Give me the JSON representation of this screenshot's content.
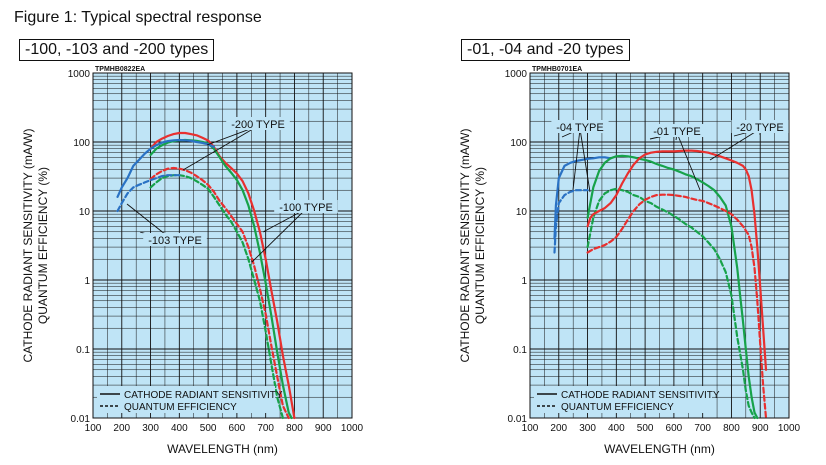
{
  "figure_title": "Figure 1: Typical spectral response",
  "chart_data": [
    {
      "type": "line",
      "title": "-100, -103 and -200 types",
      "code": "TPMHB0822EA",
      "xlabel": "WAVELENGTH (nm)",
      "ylabel_1": "CATHODE RADIANT SENSITIVITY (mA/W)",
      "ylabel_2": "QUANTUM EFFICIENCY (%)",
      "xlim": [
        100,
        1000
      ],
      "ylim": [
        0.01,
        1000
      ],
      "yscale": "log",
      "grid": true,
      "x_ticks": [
        "100",
        "200",
        "300",
        "400",
        "500",
        "600",
        "700",
        "800",
        "900",
        "1000"
      ],
      "y_ticks": [
        "0.01",
        "0.1",
        "1",
        "10",
        "100",
        "1000"
      ],
      "legend": {
        "placement": "bottom-left",
        "solid": "CATHODE RADIANT SENSITIVITY",
        "dashed": "QUANTUM EFFICIENCY"
      },
      "annotations": [
        "-200 TYPE",
        "-100 TYPE",
        "-103 TYPE"
      ],
      "series": [
        {
          "color": "#e8302f",
          "dash": false,
          "x": [
            300,
            320,
            340,
            360,
            380,
            400,
            420,
            440,
            460,
            480,
            500,
            520,
            540,
            560,
            580,
            600,
            620,
            640,
            660,
            680,
            700,
            720,
            740,
            760,
            780,
            800
          ],
          "y": [
            80,
            100,
            112,
            122,
            130,
            135,
            135,
            130,
            125,
            115,
            105,
            85,
            62,
            50,
            42,
            35,
            27,
            18,
            10,
            5,
            2,
            0.7,
            0.25,
            0.08,
            0.03,
            0.01
          ]
        },
        {
          "color": "#e8302f",
          "dash": true,
          "x": [
            300,
            320,
            340,
            360,
            380,
            400,
            420,
            440,
            460,
            480,
            500,
            520,
            540,
            560,
            580,
            600,
            620,
            640,
            660,
            680,
            700,
            720,
            740,
            760,
            780
          ],
          "y": [
            29,
            34,
            38,
            41,
            42,
            41,
            39,
            36,
            32,
            28,
            24,
            19,
            14,
            11,
            8.5,
            6.5,
            5,
            3,
            1.6,
            0.75,
            0.32,
            0.11,
            0.04,
            0.015,
            0.01
          ]
        },
        {
          "color": "#17a24a",
          "dash": false,
          "x": [
            300,
            320,
            340,
            360,
            380,
            400,
            420,
            440,
            460,
            480,
            500,
            520,
            540,
            560,
            580,
            600,
            620,
            640,
            660,
            680,
            700,
            720,
            740,
            760,
            780,
            790
          ],
          "y": [
            65,
            80,
            90,
            98,
            103,
            106,
            107,
            106,
            104,
            100,
            95,
            80,
            60,
            45,
            36,
            28,
            20,
            12,
            6,
            2.5,
            0.9,
            0.3,
            0.09,
            0.03,
            0.012,
            0.01
          ]
        },
        {
          "color": "#17a24a",
          "dash": true,
          "x": [
            300,
            320,
            340,
            360,
            380,
            400,
            420,
            440,
            460,
            480,
            500,
            520,
            540,
            560,
            580,
            600,
            620,
            640,
            660,
            680,
            700,
            720,
            740,
            760
          ],
          "y": [
            22,
            26,
            30,
            32,
            33,
            33,
            32,
            30,
            27,
            24,
            21,
            16,
            12,
            9,
            7,
            5,
            3.5,
            2,
            1,
            0.5,
            0.18,
            0.06,
            0.02,
            0.01
          ]
        },
        {
          "color": "#2a72c4",
          "dash": false,
          "x": [
            185,
            200,
            220,
            240,
            260,
            280,
            300,
            320,
            340,
            360,
            380,
            400,
            420,
            440,
            460,
            480,
            500,
            520
          ],
          "y": [
            16,
            22,
            30,
            45,
            55,
            68,
            80,
            90,
            98,
            103,
            106,
            107,
            106,
            104,
            100,
            97,
            93,
            85
          ]
        },
        {
          "color": "#2a72c4",
          "dash": true,
          "x": [
            185,
            200,
            220,
            240,
            260,
            280,
            300,
            320,
            340,
            360,
            380,
            400
          ],
          "y": [
            10,
            13,
            18,
            22,
            24,
            26,
            28,
            30,
            32,
            33,
            33,
            33
          ]
        }
      ]
    },
    {
      "type": "line",
      "title": "-01, -04 and -20 types",
      "code": "TPMHB0701EA",
      "xlabel": "WAVELENGTH (nm)",
      "ylabel_1": "CATHODE RADIANT SENSITIVITY (mA/W)",
      "ylabel_2": "QUANTUM EFFICIENCY (%)",
      "xlim": [
        100,
        1000
      ],
      "ylim": [
        0.01,
        1000
      ],
      "yscale": "log",
      "grid": true,
      "x_ticks": [
        "100",
        "200",
        "300",
        "400",
        "500",
        "600",
        "700",
        "800",
        "900",
        "1000"
      ],
      "y_ticks": [
        "0.01",
        "0.1",
        "1",
        "10",
        "100",
        "1000"
      ],
      "legend": {
        "placement": "bottom-left",
        "solid": "CATHODE RADIANT SENSITIVITY",
        "dashed": "QUANTUM EFFICIENCY"
      },
      "annotations": [
        "-04 TYPE",
        "-01 TYPE",
        "-20 TYPE"
      ],
      "series": [
        {
          "color": "#2a72c4",
          "dash": false,
          "x": [
            185,
            190,
            200,
            220,
            240,
            260,
            280,
            300,
            320,
            340,
            360,
            380
          ],
          "y": [
            4,
            12,
            30,
            45,
            50,
            53,
            55,
            57,
            58,
            60,
            60,
            58
          ]
        },
        {
          "color": "#2a72c4",
          "dash": true,
          "x": [
            185,
            190,
            200,
            220,
            240,
            260,
            280,
            300
          ],
          "y": [
            2.5,
            6,
            13,
            17,
            19,
            20,
            20,
            20
          ]
        },
        {
          "color": "#17a24a",
          "dash": false,
          "x": [
            300,
            320,
            340,
            360,
            380,
            400,
            420,
            440,
            460,
            480,
            500,
            520,
            540,
            560,
            580,
            600,
            620,
            640,
            660,
            680,
            700,
            720,
            740,
            760,
            780,
            800,
            810,
            820,
            830,
            840,
            850,
            860,
            870,
            880,
            890
          ],
          "y": [
            8,
            22,
            38,
            50,
            58,
            62,
            63,
            62,
            60,
            57,
            55,
            52,
            48,
            45,
            42,
            40,
            37,
            34,
            32,
            29,
            26,
            23,
            20,
            16,
            12,
            6,
            3,
            1.5,
            0.6,
            0.25,
            0.1,
            0.04,
            0.02,
            0.012,
            0.01
          ]
        },
        {
          "color": "#17a24a",
          "dash": true,
          "x": [
            300,
            320,
            340,
            360,
            380,
            400,
            420,
            440,
            460,
            480,
            500,
            520,
            540,
            560,
            580,
            600,
            620,
            640,
            660,
            680,
            700,
            720,
            740,
            760,
            780,
            800,
            820,
            840,
            850,
            860,
            870,
            880
          ],
          "y": [
            3,
            8,
            14,
            18,
            20,
            21,
            20,
            19,
            17,
            16,
            14,
            13,
            11.5,
            10.5,
            9.5,
            8.5,
            7.5,
            6.5,
            5.8,
            5,
            4.3,
            3.5,
            2.8,
            2,
            1.3,
            0.6,
            0.15,
            0.05,
            0.025,
            0.015,
            0.012,
            0.01
          ]
        },
        {
          "color": "#e8302f",
          "dash": false,
          "x": [
            300,
            310,
            320,
            340,
            360,
            380,
            400,
            420,
            440,
            460,
            480,
            500,
            520,
            540,
            560,
            580,
            600,
            620,
            640,
            660,
            680,
            700,
            720,
            740,
            760,
            780,
            800,
            820,
            840,
            850,
            860,
            870,
            880,
            890,
            900,
            910,
            920
          ],
          "y": [
            6,
            8,
            9,
            10,
            11,
            13,
            17,
            25,
            35,
            47,
            58,
            66,
            70,
            72,
            73,
            73,
            73,
            74,
            75,
            75,
            74,
            72,
            70,
            66,
            62,
            58,
            54,
            50,
            45,
            40,
            32,
            20,
            9,
            3,
            0.8,
            0.2,
            0.05
          ]
        },
        {
          "color": "#e8302f",
          "dash": true,
          "x": [
            300,
            320,
            340,
            360,
            380,
            400,
            420,
            440,
            460,
            480,
            500,
            520,
            540,
            560,
            580,
            600,
            620,
            640,
            660,
            680,
            700,
            720,
            740,
            760,
            780,
            800,
            820,
            840,
            860,
            870,
            880,
            890,
            900,
            910,
            920
          ],
          "y": [
            2.5,
            2.8,
            3,
            3.2,
            3.6,
            4.2,
            5.5,
            7.5,
            10,
            12.5,
            14.5,
            16,
            17,
            17.2,
            17.2,
            17,
            16.5,
            16,
            15.2,
            14.5,
            14,
            13,
            12,
            11,
            10,
            9,
            7.5,
            6,
            4.5,
            3,
            1.5,
            0.5,
            0.12,
            0.03,
            0.01
          ]
        }
      ]
    }
  ]
}
